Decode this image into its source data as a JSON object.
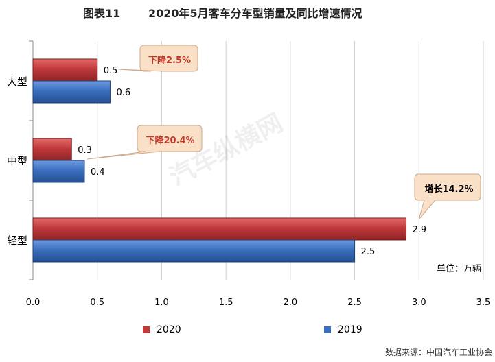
{
  "header": {
    "figure_no": "图表11",
    "title": "2020年5月客车分车型销量及同比增速情况"
  },
  "units": "单位：万辆",
  "source": "数据来源：中国汽车工业协会",
  "watermark": "汽车纵横网",
  "colors": {
    "s2020": "#c0393b",
    "s2019": "#3b6fbf",
    "callout_bg": "#fbe0c8",
    "callout_text": "#c0392b"
  },
  "chart_data": {
    "type": "bar",
    "orientation": "horizontal",
    "categories": [
      "大型",
      "中型",
      "轻型"
    ],
    "series": [
      {
        "name": "2020",
        "values": [
          0.5,
          0.3,
          2.9
        ]
      },
      {
        "name": "2019",
        "values": [
          0.6,
          0.4,
          2.5
        ]
      }
    ],
    "xlim": [
      0,
      3.5
    ],
    "xticks": [
      "0.0",
      "0.5",
      "1.0",
      "1.5",
      "2.0",
      "2.5",
      "3.0",
      "3.5"
    ],
    "value_labels": [
      [
        "0.5",
        "0.3",
        "2.9"
      ],
      [
        "0.6",
        "0.4",
        "2.5"
      ]
    ],
    "annotations": [
      "下降2.5%",
      "下降20.4%",
      "增长14.2%"
    ],
    "legend_position": "bottom",
    "grid": true
  }
}
